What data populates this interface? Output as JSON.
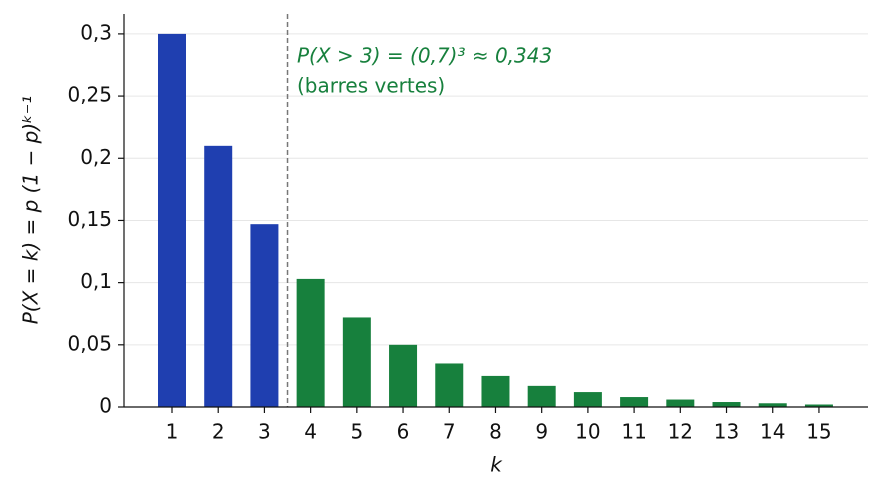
{
  "chart_data": {
    "type": "bar",
    "categories": [
      "1",
      "2",
      "3",
      "4",
      "5",
      "6",
      "7",
      "8",
      "9",
      "10",
      "11",
      "12",
      "13",
      "14",
      "15"
    ],
    "values": [
      0.3,
      0.21,
      0.147,
      0.103,
      0.072,
      0.05,
      0.035,
      0.025,
      0.017,
      0.012,
      0.008,
      0.006,
      0.004,
      0.003,
      0.002
    ],
    "colors": [
      "#1f3fb0",
      "#1f3fb0",
      "#1f3fb0",
      "#17803d",
      "#17803d",
      "#17803d",
      "#17803d",
      "#17803d",
      "#17803d",
      "#17803d",
      "#17803d",
      "#17803d",
      "#17803d",
      "#17803d",
      "#17803d"
    ],
    "ylim": [
      0,
      0.316
    ],
    "yticks": [
      0,
      {
        "value": 0.05,
        "label": "0,05"
      },
      {
        "value": 0.1,
        "label": "0,1"
      },
      {
        "value": 0.15,
        "label": "0,15"
      },
      {
        "value": 0.2,
        "label": "0,2"
      },
      {
        "value": 0.25,
        "label": "0,25"
      },
      {
        "value": 0.3,
        "label": "0,3"
      }
    ],
    "grid": true,
    "xlabel": "k",
    "ylabel": "P(X = k) = p (1 − p)ᵏ⁻¹",
    "annotation": [
      "P(X > 3) = (0,7)³ ≈ 0,343",
      "(barres vertes)"
    ]
  }
}
